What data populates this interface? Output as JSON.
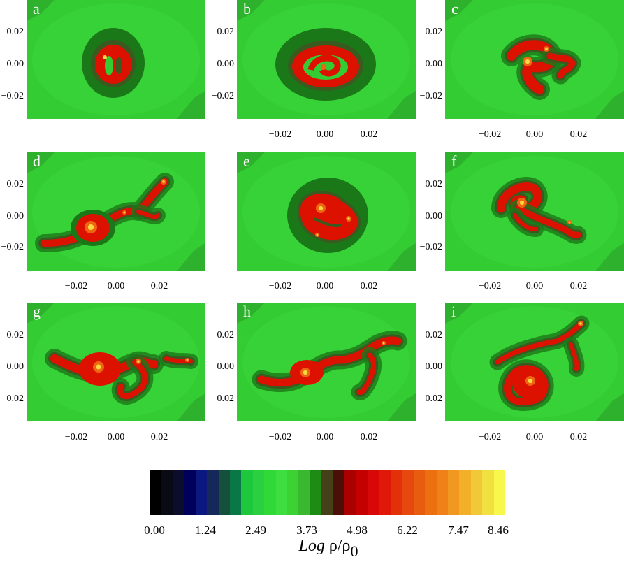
{
  "chart_data": [
    {
      "type": "heatmap",
      "panel": "a",
      "xticks": [],
      "yticks": [
        "0.02",
        "0.00",
        "−0.02"
      ]
    },
    {
      "type": "heatmap",
      "panel": "b",
      "xticks": [
        "−0.02",
        "0.00",
        "0.02"
      ],
      "yticks": [
        "0.02",
        "0.00",
        "−0.02"
      ]
    },
    {
      "type": "heatmap",
      "panel": "c",
      "xticks": [
        "−0.02",
        "0.00",
        "0.02"
      ],
      "yticks": [
        "0.02",
        "0.00",
        "−0.02"
      ]
    },
    {
      "type": "heatmap",
      "panel": "d",
      "xticks": [
        "−0.02",
        "0.00",
        "0.02"
      ],
      "yticks": [
        "0.02",
        "0.00",
        "−0.02"
      ]
    },
    {
      "type": "heatmap",
      "panel": "e",
      "xticks": [
        "−0.02",
        "0.00",
        "0.02"
      ],
      "yticks": []
    },
    {
      "type": "heatmap",
      "panel": "f",
      "xticks": [
        "−0.02",
        "0.00",
        "0.02"
      ],
      "yticks": [
        "0.02",
        "0.00",
        "−0.02"
      ]
    },
    {
      "type": "heatmap",
      "panel": "g",
      "xticks": [
        "−0.02",
        "0.00",
        "0.02"
      ],
      "yticks": [
        "0.02",
        "0.00",
        "−0.02"
      ]
    },
    {
      "type": "heatmap",
      "panel": "h",
      "xticks": [
        "−0.02",
        "0.00",
        "0.02"
      ],
      "yticks": [
        "0.02",
        "0.00",
        "−0.02"
      ]
    },
    {
      "type": "heatmap",
      "panel": "i",
      "xticks": [
        "−0.02",
        "0.00",
        "0.02"
      ],
      "yticks": [
        "0.02",
        "0.00",
        "−0.02"
      ]
    }
  ],
  "colorbar": {
    "ticks": [
      "0.00",
      "1.24",
      "2.49",
      "3.73",
      "4.98",
      "6.22",
      "7.47",
      "8.46"
    ],
    "label_log": "Log",
    "label_rho": "ρ/ρ",
    "label_sub": "0",
    "colors": [
      "#000000",
      "#0a0a14",
      "#0c0c2c",
      "#00005a",
      "#0a1880",
      "#14285a",
      "#14503c",
      "#0a7846",
      "#1ec83c",
      "#2ad040",
      "#30d838",
      "#3ede40",
      "#3cd234",
      "#3ab830",
      "#1e8c14",
      "#444018",
      "#4a1008",
      "#aa0000",
      "#c40000",
      "#d80808",
      "#e01808",
      "#e23008",
      "#e64810",
      "#e85c10",
      "#ec7010",
      "#f08018",
      "#f09820",
      "#f2b028",
      "#f0c838",
      "#f0e040",
      "#f8f84c"
    ]
  },
  "colors": {
    "background_green": "#33cc33",
    "light_green": "#3ad63a",
    "dark_green": "#2a9628",
    "mid_dark_green": "#1a7818",
    "ring_dark": "#3a5a20",
    "red": "#dd1100",
    "orange": "#ee6611",
    "yellow": "#f6d840"
  }
}
